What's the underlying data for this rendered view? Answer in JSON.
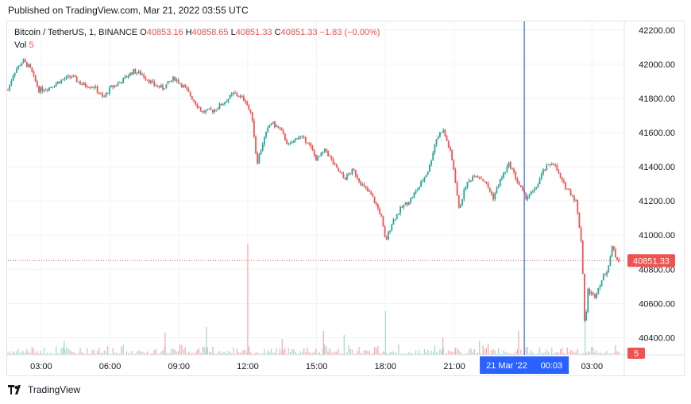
{
  "header": {
    "published": "Published on TradingView.com, Mar 21, 2022 03:55 UTC"
  },
  "legend": {
    "symbol": "Bitcoin / TetherUS, 1, BINANCE",
    "o_label": "O",
    "o_value": "40853.16",
    "h_label": "H",
    "h_value": "40858.65",
    "l_label": "L",
    "l_value": "40851.33",
    "c_label": "C",
    "c_value": "40851.33",
    "change": "−1.83 (−0.00%)",
    "vol_label": "Vol",
    "vol_value": "5"
  },
  "footer": {
    "brand": "TradingView"
  },
  "colors": {
    "up": "#26a69a",
    "down": "#ef5350",
    "crosshair": "#2962ff",
    "grid": "#f0f3fa",
    "axis_text": "#131722"
  },
  "chart_data": {
    "type": "candlestick",
    "title": "Bitcoin / TetherUS, 1, BINANCE",
    "ylim": [
      40300,
      42250
    ],
    "y_ticks": [
      "42200.00",
      "42000.00",
      "41800.00",
      "41600.00",
      "41400.00",
      "41200.00",
      "41000.00",
      "40800.00",
      "40600.00",
      "40400.00"
    ],
    "x_ticks": [
      "03:00",
      "06:00",
      "09:00",
      "12:00",
      "15:00",
      "18:00",
      "21:00",
      "00:03",
      "03:00"
    ],
    "x_tick_hours": [
      3,
      6,
      9,
      12,
      15,
      18,
      21,
      24.05,
      27
    ],
    "x_start_hour": 1.55,
    "x_end_hour": 28.2,
    "last_price": "40851.33",
    "last_volume": "5",
    "crosshair": {
      "date_label": "21 Mar '22",
      "time_label": "00:03",
      "hour": 24.05
    },
    "price_path": [
      [
        1.55,
        41850
      ],
      [
        1.8,
        41950
      ],
      [
        2.2,
        42020
      ],
      [
        2.5,
        41980
      ],
      [
        2.9,
        41850
      ],
      [
        3.3,
        41860
      ],
      [
        3.8,
        41900
      ],
      [
        4.3,
        41930
      ],
      [
        4.8,
        41880
      ],
      [
        5.3,
        41870
      ],
      [
        5.7,
        41800
      ],
      [
        6.0,
        41860
      ],
      [
        6.5,
        41900
      ],
      [
        7.0,
        41960
      ],
      [
        7.4,
        41940
      ],
      [
        7.9,
        41880
      ],
      [
        8.3,
        41860
      ],
      [
        8.8,
        41920
      ],
      [
        9.2,
        41870
      ],
      [
        9.7,
        41780
      ],
      [
        10.0,
        41720
      ],
      [
        10.5,
        41730
      ],
      [
        11.0,
        41780
      ],
      [
        11.4,
        41830
      ],
      [
        11.9,
        41790
      ],
      [
        12.2,
        41680
      ],
      [
        12.4,
        41420
      ],
      [
        12.7,
        41560
      ],
      [
        13.0,
        41660
      ],
      [
        13.4,
        41620
      ],
      [
        13.8,
        41520
      ],
      [
        14.2,
        41580
      ],
      [
        14.6,
        41550
      ],
      [
        15.0,
        41440
      ],
      [
        15.4,
        41500
      ],
      [
        15.8,
        41400
      ],
      [
        16.2,
        41330
      ],
      [
        16.6,
        41380
      ],
      [
        17.0,
        41290
      ],
      [
        17.4,
        41230
      ],
      [
        17.8,
        41120
      ],
      [
        18.0,
        40960
      ],
      [
        18.3,
        41080
      ],
      [
        18.7,
        41160
      ],
      [
        19.1,
        41210
      ],
      [
        19.5,
        41290
      ],
      [
        19.9,
        41390
      ],
      [
        20.2,
        41560
      ],
      [
        20.5,
        41620
      ],
      [
        20.8,
        41500
      ],
      [
        21.0,
        41370
      ],
      [
        21.2,
        41150
      ],
      [
        21.5,
        41290
      ],
      [
        21.9,
        41360
      ],
      [
        22.3,
        41320
      ],
      [
        22.7,
        41220
      ],
      [
        23.0,
        41320
      ],
      [
        23.4,
        41420
      ],
      [
        23.8,
        41300
      ],
      [
        24.1,
        41220
      ],
      [
        24.5,
        41260
      ],
      [
        24.9,
        41380
      ],
      [
        25.3,
        41430
      ],
      [
        25.7,
        41310
      ],
      [
        26.0,
        41260
      ],
      [
        26.3,
        41200
      ],
      [
        26.55,
        40950
      ],
      [
        26.7,
        40420
      ],
      [
        26.8,
        40680
      ],
      [
        27.1,
        40640
      ],
      [
        27.4,
        40730
      ],
      [
        27.7,
        40810
      ],
      [
        27.9,
        40940
      ],
      [
        28.0,
        40880
      ],
      [
        28.2,
        40851
      ]
    ],
    "volume_spikes": [
      [
        12.0,
        140
      ],
      [
        18.0,
        55
      ],
      [
        15.3,
        30
      ],
      [
        10.2,
        35
      ],
      [
        23.8,
        30
      ],
      [
        26.7,
        45
      ],
      [
        8.4,
        28
      ],
      [
        16.2,
        25
      ],
      [
        20.5,
        22
      ],
      [
        4.0,
        18
      ],
      [
        13.5,
        20
      ],
      [
        22.1,
        18
      ]
    ]
  }
}
